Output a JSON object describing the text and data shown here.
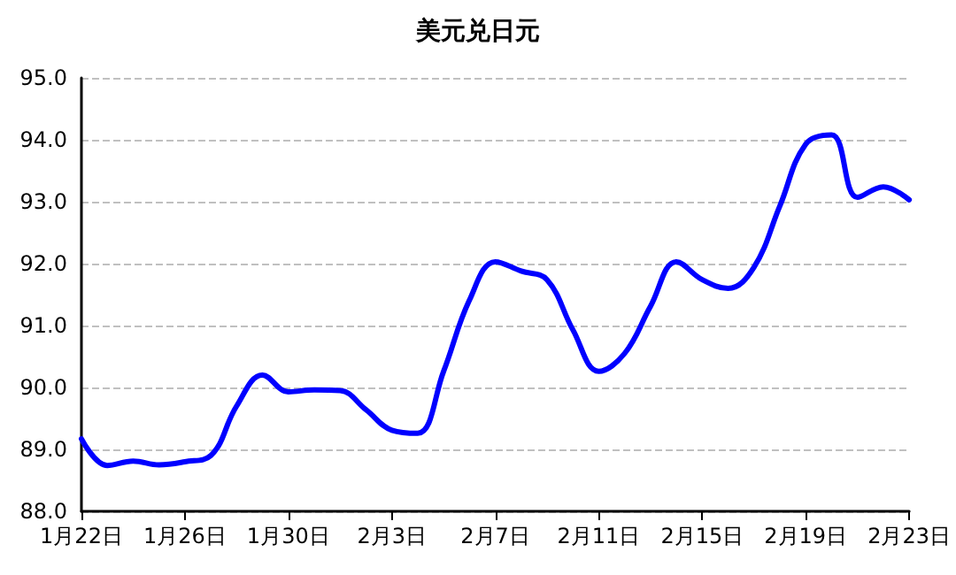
{
  "chart_data": {
    "type": "line",
    "title": "美元兑日元",
    "categories": [
      "1月22日",
      null,
      null,
      null,
      "1月26日",
      null,
      null,
      null,
      "1月30日",
      null,
      null,
      null,
      "2月3日",
      null,
      null,
      null,
      "2月7日",
      null,
      null,
      null,
      "2月11日",
      null,
      null,
      null,
      "2月15日",
      null,
      null,
      null,
      "2月19日",
      null,
      null,
      null,
      "2月23日"
    ],
    "series": [
      {
        "color": "#0000ff",
        "values": [
          89.17,
          88.74,
          88.81,
          88.75,
          88.8,
          88.9,
          89.7,
          90.2,
          89.93,
          89.96,
          89.95,
          89.64,
          89.31,
          89.26,
          90.26,
          91.41,
          92.03,
          91.88,
          91.74,
          90.93,
          90.26,
          90.55,
          91.31,
          92.03,
          91.74,
          91.6,
          91.94,
          92.93,
          93.93,
          94.08,
          93.07,
          93.24,
          93.03
        ]
      }
    ],
    "ylim": [
      88,
      95
    ],
    "yticks": [
      {
        "value": 88,
        "label": "88.0"
      },
      {
        "value": 89,
        "label": "89.0"
      },
      {
        "value": 90,
        "label": "90.0"
      },
      {
        "value": 91,
        "label": "91.0"
      },
      {
        "value": 92,
        "label": "92.0"
      },
      {
        "value": 93,
        "label": "93.0"
      },
      {
        "value": 94,
        "label": "94.0"
      },
      {
        "value": 95,
        "label": "95.0"
      }
    ],
    "grid": "y",
    "marker": "none",
    "line_style": "solid"
  }
}
